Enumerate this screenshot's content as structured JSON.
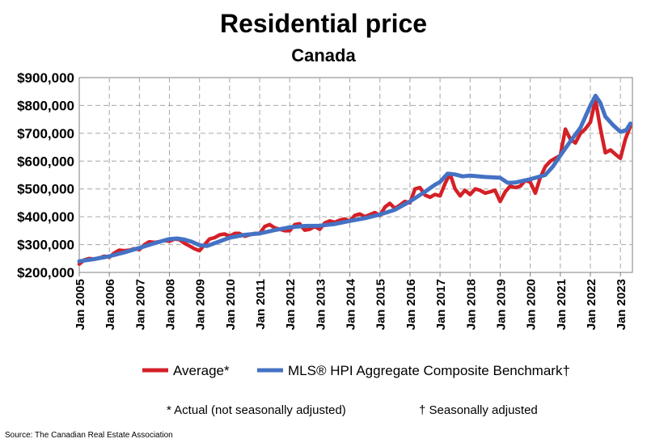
{
  "chart_data": {
    "type": "line",
    "title": "Residential price",
    "subtitle": "Canada",
    "ylim": [
      200000,
      900000
    ],
    "yticks": [
      200000,
      300000,
      400000,
      500000,
      600000,
      700000,
      800000,
      900000
    ],
    "ytick_labels": [
      "$200,000",
      "$300,000",
      "$400,000",
      "$500,000",
      "$600,000",
      "$700,000",
      "$800,000",
      "$900,000"
    ],
    "xlim": [
      2005.0,
      2023.4
    ],
    "xticks": [
      2005,
      2006,
      2007,
      2008,
      2009,
      2010,
      2011,
      2012,
      2013,
      2014,
      2015,
      2016,
      2017,
      2018,
      2019,
      2020,
      2021,
      2022,
      2023
    ],
    "xtick_labels": [
      "Jan 2005",
      "Jan 2006",
      "Jan 2007",
      "Jan 2008",
      "Jan 2009",
      "Jan 2010",
      "Jan 2011",
      "Jan 2012",
      "Jan 2013",
      "Jan 2014",
      "Jan 2015",
      "Jan 2016",
      "Jan 2017",
      "Jan 2018",
      "Jan 2019",
      "Jan 2020",
      "Jan 2021",
      "Jan 2022",
      "Jan 2023"
    ],
    "grid": true,
    "legend_position": "bottom",
    "series": [
      {
        "name": "Average*",
        "color": "#d42027",
        "points": [
          [
            2005.0,
            230000
          ],
          [
            2005.17,
            245000
          ],
          [
            2005.33,
            250000
          ],
          [
            2005.5,
            248000
          ],
          [
            2005.67,
            252000
          ],
          [
            2005.83,
            258000
          ],
          [
            2006.0,
            255000
          ],
          [
            2006.17,
            270000
          ],
          [
            2006.33,
            280000
          ],
          [
            2006.5,
            278000
          ],
          [
            2006.67,
            280000
          ],
          [
            2006.83,
            285000
          ],
          [
            2007.0,
            282000
          ],
          [
            2007.17,
            300000
          ],
          [
            2007.33,
            310000
          ],
          [
            2007.5,
            308000
          ],
          [
            2007.67,
            310000
          ],
          [
            2007.83,
            315000
          ],
          [
            2008.0,
            312000
          ],
          [
            2008.17,
            320000
          ],
          [
            2008.33,
            318000
          ],
          [
            2008.5,
            305000
          ],
          [
            2008.67,
            295000
          ],
          [
            2008.83,
            285000
          ],
          [
            2009.0,
            278000
          ],
          [
            2009.17,
            300000
          ],
          [
            2009.33,
            320000
          ],
          [
            2009.5,
            325000
          ],
          [
            2009.67,
            335000
          ],
          [
            2009.83,
            338000
          ],
          [
            2010.0,
            330000
          ],
          [
            2010.17,
            340000
          ],
          [
            2010.33,
            340000
          ],
          [
            2010.5,
            330000
          ],
          [
            2010.67,
            335000
          ],
          [
            2010.83,
            340000
          ],
          [
            2011.0,
            340000
          ],
          [
            2011.17,
            365000
          ],
          [
            2011.33,
            372000
          ],
          [
            2011.5,
            360000
          ],
          [
            2011.67,
            355000
          ],
          [
            2011.83,
            350000
          ],
          [
            2012.0,
            350000
          ],
          [
            2012.17,
            372000
          ],
          [
            2012.33,
            375000
          ],
          [
            2012.5,
            352000
          ],
          [
            2012.67,
            355000
          ],
          [
            2012.83,
            365000
          ],
          [
            2013.0,
            355000
          ],
          [
            2013.17,
            378000
          ],
          [
            2013.33,
            385000
          ],
          [
            2013.5,
            380000
          ],
          [
            2013.67,
            388000
          ],
          [
            2013.83,
            392000
          ],
          [
            2014.0,
            385000
          ],
          [
            2014.17,
            405000
          ],
          [
            2014.33,
            410000
          ],
          [
            2014.5,
            400000
          ],
          [
            2014.67,
            408000
          ],
          [
            2014.83,
            415000
          ],
          [
            2015.0,
            405000
          ],
          [
            2015.17,
            435000
          ],
          [
            2015.33,
            448000
          ],
          [
            2015.5,
            430000
          ],
          [
            2015.67,
            442000
          ],
          [
            2015.83,
            455000
          ],
          [
            2016.0,
            450000
          ],
          [
            2016.17,
            500000
          ],
          [
            2016.33,
            505000
          ],
          [
            2016.5,
            478000
          ],
          [
            2016.67,
            470000
          ],
          [
            2016.83,
            480000
          ],
          [
            2017.0,
            475000
          ],
          [
            2017.17,
            520000
          ],
          [
            2017.33,
            555000
          ],
          [
            2017.5,
            500000
          ],
          [
            2017.67,
            475000
          ],
          [
            2017.83,
            495000
          ],
          [
            2018.0,
            480000
          ],
          [
            2018.17,
            500000
          ],
          [
            2018.33,
            495000
          ],
          [
            2018.5,
            485000
          ],
          [
            2018.67,
            490000
          ],
          [
            2018.83,
            495000
          ],
          [
            2019.0,
            455000
          ],
          [
            2019.17,
            490000
          ],
          [
            2019.33,
            510000
          ],
          [
            2019.5,
            505000
          ],
          [
            2019.67,
            510000
          ],
          [
            2019.83,
            530000
          ],
          [
            2020.0,
            525000
          ],
          [
            2020.17,
            485000
          ],
          [
            2020.33,
            540000
          ],
          [
            2020.5,
            580000
          ],
          [
            2020.67,
            600000
          ],
          [
            2020.83,
            610000
          ],
          [
            2021.0,
            620000
          ],
          [
            2021.17,
            715000
          ],
          [
            2021.33,
            680000
          ],
          [
            2021.5,
            665000
          ],
          [
            2021.67,
            700000
          ],
          [
            2021.83,
            715000
          ],
          [
            2022.0,
            740000
          ],
          [
            2022.17,
            820000
          ],
          [
            2022.33,
            720000
          ],
          [
            2022.5,
            630000
          ],
          [
            2022.67,
            640000
          ],
          [
            2022.83,
            625000
          ],
          [
            2023.0,
            610000
          ],
          [
            2023.17,
            680000
          ],
          [
            2023.33,
            725000
          ]
        ]
      },
      {
        "name": "MLS® HPI Aggregate Composite Benchmark†",
        "color": "#4472c4",
        "points": [
          [
            2005.0,
            240000
          ],
          [
            2005.5,
            248000
          ],
          [
            2006.0,
            258000
          ],
          [
            2006.5,
            272000
          ],
          [
            2007.0,
            288000
          ],
          [
            2007.5,
            305000
          ],
          [
            2008.0,
            320000
          ],
          [
            2008.25,
            322000
          ],
          [
            2008.5,
            318000
          ],
          [
            2008.75,
            310000
          ],
          [
            2009.0,
            298000
          ],
          [
            2009.25,
            295000
          ],
          [
            2009.5,
            305000
          ],
          [
            2010.0,
            325000
          ],
          [
            2010.5,
            335000
          ],
          [
            2011.0,
            340000
          ],
          [
            2011.5,
            352000
          ],
          [
            2012.0,
            362000
          ],
          [
            2012.5,
            367000
          ],
          [
            2013.0,
            368000
          ],
          [
            2013.5,
            374000
          ],
          [
            2014.0,
            385000
          ],
          [
            2014.5,
            395000
          ],
          [
            2015.0,
            408000
          ],
          [
            2015.5,
            425000
          ],
          [
            2016.0,
            455000
          ],
          [
            2016.5,
            490000
          ],
          [
            2016.83,
            515000
          ],
          [
            2017.0,
            525000
          ],
          [
            2017.25,
            555000
          ],
          [
            2017.5,
            552000
          ],
          [
            2017.75,
            545000
          ],
          [
            2018.0,
            548000
          ],
          [
            2018.5,
            543000
          ],
          [
            2019.0,
            540000
          ],
          [
            2019.25,
            522000
          ],
          [
            2019.5,
            523000
          ],
          [
            2020.0,
            535000
          ],
          [
            2020.5,
            550000
          ],
          [
            2020.75,
            580000
          ],
          [
            2021.0,
            620000
          ],
          [
            2021.33,
            670000
          ],
          [
            2021.67,
            720000
          ],
          [
            2022.0,
            800000
          ],
          [
            2022.17,
            835000
          ],
          [
            2022.33,
            810000
          ],
          [
            2022.5,
            760000
          ],
          [
            2022.75,
            730000
          ],
          [
            2023.0,
            705000
          ],
          [
            2023.2,
            712000
          ],
          [
            2023.33,
            735000
          ]
        ]
      }
    ],
    "notes": [
      "* Actual (not seasonally adjusted)",
      "† Seasonally adjusted"
    ],
    "source": "Source: The Canadian Real Estate Association"
  }
}
